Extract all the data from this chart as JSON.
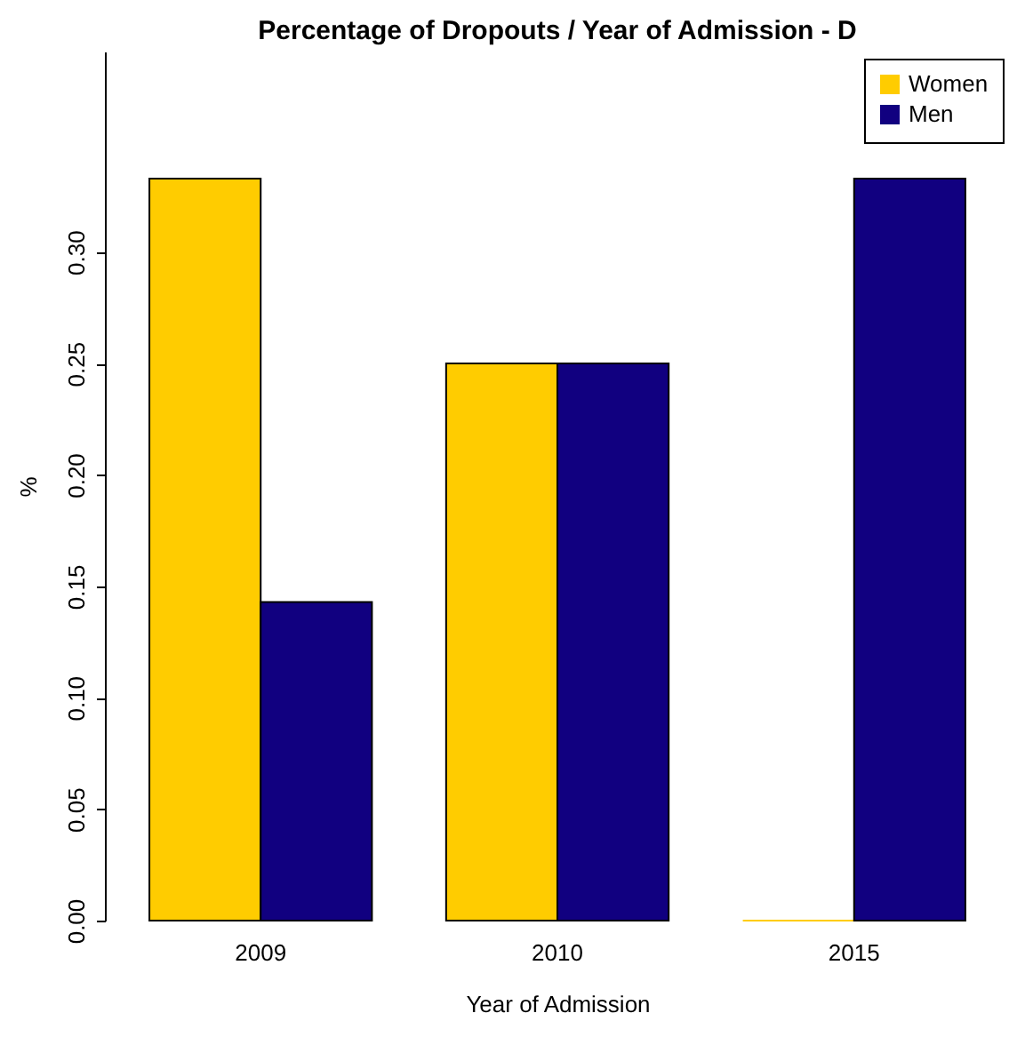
{
  "chart_data": {
    "type": "bar",
    "title": "Percentage of Dropouts / Year of Admission - D",
    "xlabel": "Year of Admission",
    "ylabel": "%",
    "categories": [
      "2009",
      "2010",
      "2015"
    ],
    "series": [
      {
        "name": "Women",
        "color": "#ffcc00",
        "values": [
          0.333,
          0.25,
          0
        ]
      },
      {
        "name": "Men",
        "color": "#110080",
        "values": [
          0.143,
          0.25,
          0.333
        ]
      }
    ],
    "ylim": [
      0,
      0.39
    ],
    "yticks": [
      {
        "value": 0,
        "label": "0.00"
      },
      {
        "value": 0.05,
        "label": "0.05"
      },
      {
        "value": 0.1,
        "label": "0.10"
      },
      {
        "value": 0.15,
        "label": "0.15"
      },
      {
        "value": 0.2,
        "label": "0.20"
      },
      {
        "value": 0.25,
        "label": "0.25"
      },
      {
        "value": 0.3,
        "label": "0.30"
      }
    ],
    "grid": false,
    "legend": "top right"
  }
}
